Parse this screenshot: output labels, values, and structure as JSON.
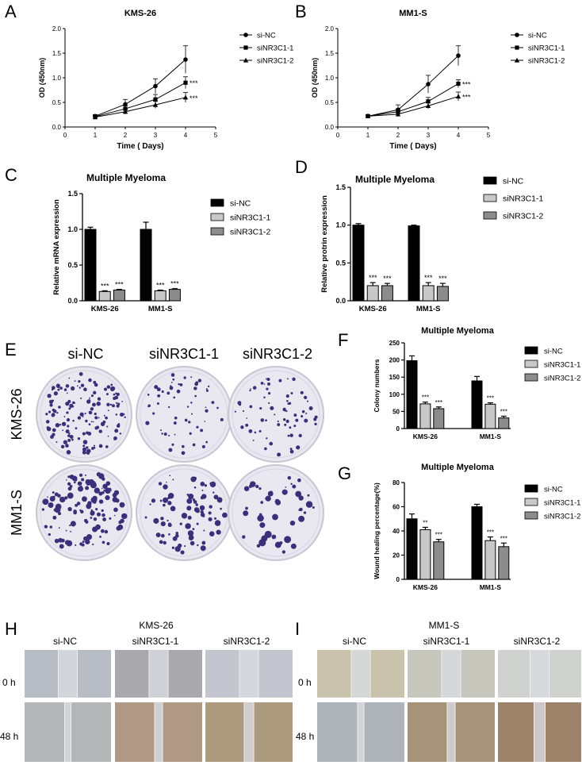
{
  "colors": {
    "black": "#000000",
    "light_gray": "#c8c8c8",
    "mid_gray": "#8c8c8c",
    "dish_bg": "#e9e7ef",
    "colony": "#3b2f7a",
    "wound_left": "#a8b2bd",
    "wound_right": "#9aa6b2"
  },
  "panel_labels": {
    "A": "A",
    "B": "B",
    "C": "C",
    "D": "D",
    "E": "E",
    "F": "F",
    "G": "G",
    "H": "H",
    "I": "I"
  },
  "chart_data": [
    {
      "id": "A",
      "type": "line",
      "title": "KMS-26",
      "xlabel": "Time ( Days)",
      "ylabel": "OD (450nm)",
      "xlim": [
        0,
        5
      ],
      "ylim": [
        0,
        2.0
      ],
      "xticks": [
        "0",
        "1",
        "2",
        "3",
        "4",
        "5"
      ],
      "yticks": [
        "0.0",
        "0.5",
        "1.0",
        "1.5",
        "2.0"
      ],
      "x": [
        1,
        2,
        3,
        4
      ],
      "series": [
        {
          "name": "si-NC",
          "marker": "circle",
          "values": [
            0.22,
            0.46,
            0.83,
            1.37
          ],
          "err": [
            0.03,
            0.1,
            0.15,
            0.28
          ]
        },
        {
          "name": "siNR3C1-1",
          "marker": "square",
          "values": [
            0.21,
            0.37,
            0.56,
            0.9
          ],
          "err": [
            0.03,
            0.06,
            0.1,
            0.12
          ]
        },
        {
          "name": "siNR3C1-2",
          "marker": "triangle",
          "values": [
            0.2,
            0.31,
            0.45,
            0.6
          ],
          "err": [
            0.02,
            0.05,
            0.07,
            0.1
          ]
        }
      ],
      "annotations": [
        "***",
        "***"
      ]
    },
    {
      "id": "B",
      "type": "line",
      "title": "MM1-S",
      "xlabel": "Time ( Days)",
      "ylabel": "OD (450nm)",
      "xlim": [
        0,
        5
      ],
      "ylim": [
        0,
        2.0
      ],
      "xticks": [
        "0",
        "1",
        "2",
        "3",
        "4",
        "5"
      ],
      "yticks": [
        "0.0",
        "0.5",
        "1.0",
        "1.5",
        "2.0"
      ],
      "x": [
        1,
        2,
        3,
        4
      ],
      "series": [
        {
          "name": "si-NC",
          "marker": "circle",
          "values": [
            0.22,
            0.35,
            0.87,
            1.45
          ],
          "err": [
            0.03,
            0.1,
            0.18,
            0.2
          ]
        },
        {
          "name": "siNR3C1-1",
          "marker": "square",
          "values": [
            0.22,
            0.31,
            0.52,
            0.88
          ],
          "err": [
            0.02,
            0.06,
            0.08,
            0.08
          ]
        },
        {
          "name": "siNR3C1-2",
          "marker": "triangle",
          "values": [
            0.22,
            0.26,
            0.43,
            0.62
          ],
          "err": [
            0.02,
            0.05,
            0.06,
            0.09
          ]
        }
      ],
      "annotations": [
        "***",
        "***"
      ]
    },
    {
      "id": "C",
      "type": "bar",
      "title": "Multiple Myeloma",
      "ylabel": "Relative mRNA expression",
      "ylim": [
        0,
        1.5
      ],
      "yticks": [
        "0.0",
        "0.5",
        "1.0",
        "1.5"
      ],
      "categories": [
        "KMS-26",
        "MM1-S"
      ],
      "series": [
        {
          "name": "si-NC",
          "values": [
            1.0,
            1.0
          ],
          "err": [
            0.03,
            0.1
          ],
          "stars": [
            "",
            ""
          ]
        },
        {
          "name": "siNR3C1-1",
          "values": [
            0.13,
            0.14
          ],
          "err": [
            0.01,
            0.01
          ],
          "stars": [
            "***",
            "***"
          ]
        },
        {
          "name": "siNR3C1-2",
          "values": [
            0.15,
            0.16
          ],
          "err": [
            0.01,
            0.01
          ],
          "stars": [
            "***",
            "***"
          ]
        }
      ]
    },
    {
      "id": "D",
      "type": "bar",
      "title": "Multiple Myeloma",
      "ylabel": "Relative protrin expression",
      "ylim": [
        0,
        1.5
      ],
      "yticks": [
        "0.0",
        "0.5",
        "1.0",
        "1.5"
      ],
      "categories": [
        "KMS-26",
        "MM1-S"
      ],
      "series": [
        {
          "name": "si-NC",
          "values": [
            1.0,
            0.99
          ],
          "err": [
            0.02,
            0.01
          ],
          "stars": [
            "",
            ""
          ]
        },
        {
          "name": "siNR3C1-1",
          "values": [
            0.2,
            0.2
          ],
          "err": [
            0.04,
            0.04
          ],
          "stars": [
            "***",
            "***"
          ]
        },
        {
          "name": "siNR3C1-2",
          "values": [
            0.2,
            0.19
          ],
          "err": [
            0.03,
            0.04
          ],
          "stars": [
            "***",
            "***"
          ]
        }
      ]
    },
    {
      "id": "F",
      "type": "bar",
      "title": "Multiple Myeloma",
      "ylabel": "Colony numbers",
      "ylim": [
        0,
        250
      ],
      "yticks": [
        "0",
        "50",
        "100",
        "150",
        "200",
        "250"
      ],
      "categories": [
        "KMS-26",
        "MM1-S"
      ],
      "series": [
        {
          "name": "si-NC",
          "values": [
            198,
            139
          ],
          "err": [
            14,
            13
          ],
          "stars": [
            "",
            ""
          ]
        },
        {
          "name": "siNR3C1-1",
          "values": [
            72,
            71
          ],
          "err": [
            5,
            4
          ],
          "stars": [
            "***",
            "***"
          ]
        },
        {
          "name": "siNR3C1-2",
          "values": [
            58,
            31
          ],
          "err": [
            5,
            5
          ],
          "stars": [
            "***",
            "***"
          ]
        }
      ]
    },
    {
      "id": "G",
      "type": "bar",
      "title": "Multiple Myeloma",
      "ylabel": "Wound healing percentage(%)",
      "ylim": [
        0,
        80
      ],
      "yticks": [
        "0",
        "20",
        "40",
        "60",
        "80"
      ],
      "categories": [
        "KMS-26",
        "MM1-S"
      ],
      "series": [
        {
          "name": "si-NC",
          "values": [
            50,
            60
          ],
          "err": [
            4,
            2
          ],
          "stars": [
            "",
            ""
          ]
        },
        {
          "name": "siNR3C1-1",
          "values": [
            41,
            32
          ],
          "err": [
            2,
            3
          ],
          "stars": [
            "**",
            "***"
          ]
        },
        {
          "name": "siNR3C1-2",
          "values": [
            31,
            27
          ],
          "err": [
            2,
            3
          ],
          "stars": [
            "***",
            "***"
          ]
        }
      ]
    }
  ],
  "colony_panel": {
    "columns": [
      "si-NC",
      "siNR3C1-1",
      "siNR3C1-2"
    ],
    "rows": [
      "KMS-26",
      "MM1-S"
    ]
  },
  "wound_panels": [
    {
      "id": "H",
      "title": "KMS-26",
      "columns": [
        "si-NC",
        "siNR3C1-1",
        "siNR3C1-2"
      ],
      "rows": [
        "0 h",
        "48 h"
      ]
    },
    {
      "id": "I",
      "title": "MM1-S",
      "columns": [
        "si-NC",
        "siNR3C1-1",
        "siNR3C1-2"
      ],
      "rows": [
        "0 h",
        "48 h"
      ]
    }
  ]
}
